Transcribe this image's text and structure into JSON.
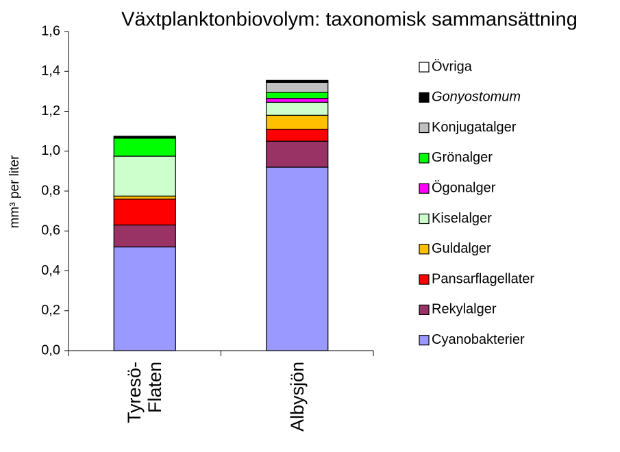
{
  "chart_data": {
    "type": "stacked_bar",
    "title": "Växtplanktonbiovolym: taxonomisk sammansättning",
    "y_label": "mm³ per liter",
    "categories": [
      "Tyresö-\nFlaten",
      "Albysjön"
    ],
    "series": [
      {
        "name": "Cyanobakterier",
        "color": "#9999ff",
        "values": [
          0.52,
          0.92
        ]
      },
      {
        "name": "Rekylalger",
        "color": "#993366",
        "values": [
          0.11,
          0.13
        ]
      },
      {
        "name": "Pansarflagellater",
        "color": "#ff0000",
        "values": [
          0.13,
          0.06
        ]
      },
      {
        "name": "Guldalger",
        "color": "#ffc000",
        "values": [
          0.015,
          0.07
        ]
      },
      {
        "name": "Kiselalger",
        "color": "#ccffcc",
        "values": [
          0.2,
          0.065
        ]
      },
      {
        "name": "Ögonalger",
        "color": "#ff00ff",
        "values": [
          0,
          0.02
        ]
      },
      {
        "name": "Grönalger",
        "color": "#00ff00",
        "values": [
          0.09,
          0.03
        ]
      },
      {
        "name": "Konjugatalger",
        "color": "#c0c0c0",
        "values": [
          0,
          0.05
        ]
      },
      {
        "name": "Gonyostomum",
        "color": "#000000",
        "values": [
          0.01,
          0.01
        ]
      },
      {
        "name": "Övriga",
        "color": "#ffffff",
        "values": [
          0,
          0
        ]
      }
    ],
    "ylim": [
      0,
      1.6
    ],
    "yticks": [
      {
        "value": 0,
        "label": "0,0"
      },
      {
        "value": 0.2,
        "label": "0,2"
      },
      {
        "value": 0.4,
        "label": "0,4"
      },
      {
        "value": 0.6,
        "label": "0,6"
      },
      {
        "value": 0.8,
        "label": "0,8"
      },
      {
        "value": 1.0,
        "label": "1,0"
      },
      {
        "value": 1.2,
        "label": "1,2"
      },
      {
        "value": 1.4,
        "label": "1,4"
      },
      {
        "value": 1.6,
        "label": "1,6"
      }
    ],
    "legend": "right"
  }
}
